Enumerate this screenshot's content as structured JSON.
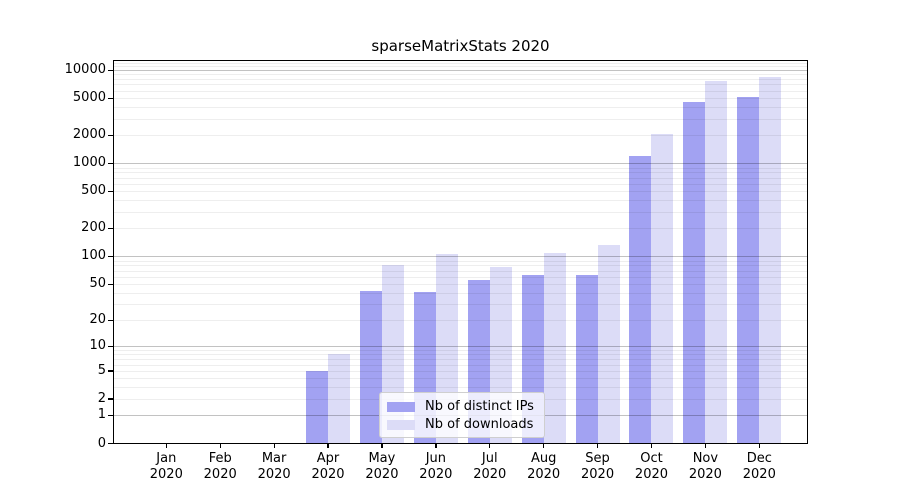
{
  "title": "sparseMatrixStats 2020",
  "chart_data": {
    "type": "bar",
    "title": "sparseMatrixStats 2020",
    "categories": [
      "Jan",
      "Feb",
      "Mar",
      "Apr",
      "May",
      "Jun",
      "Jul",
      "Aug",
      "Sep",
      "Oct",
      "Nov",
      "Dec"
    ],
    "x_year": "2020",
    "series": [
      {
        "name": "Nb of distinct IPs",
        "color": "#a2a2f2",
        "values": [
          0,
          0,
          0,
          5,
          42,
          41,
          55,
          62,
          62,
          1200,
          4570,
          5090
        ]
      },
      {
        "name": "Nb of downloads",
        "color": "#dcdcf7",
        "values": [
          0,
          0,
          0,
          8,
          80,
          106,
          76,
          110,
          132,
          2060,
          7620,
          8350
        ]
      }
    ],
    "y_scale": "log10(value+1)",
    "y_ticks": [
      0,
      1,
      2,
      5,
      10,
      20,
      50,
      100,
      200,
      500,
      1000,
      2000,
      5000,
      10000
    ],
    "y_major_gridlines": [
      1,
      10,
      100,
      1000,
      10000
    ],
    "ylim": [
      0,
      12800
    ],
    "grid": true,
    "legend_position": "lower center",
    "axis_color": "#000000",
    "major_grid_color": "#c2c2c2",
    "minor_grid_color": "#ececec",
    "background_color": "#ffffff"
  }
}
